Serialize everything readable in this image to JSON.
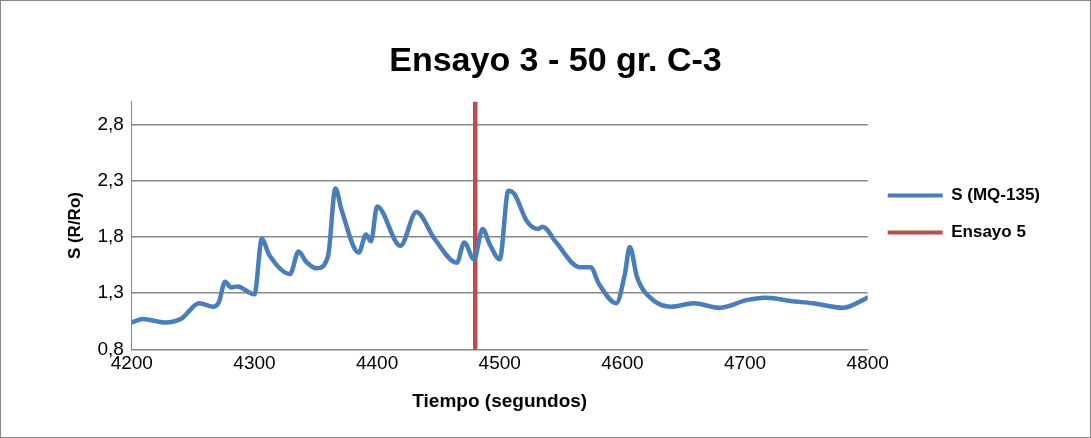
{
  "chart_data": {
    "type": "line",
    "title": "Ensayo 3 - 50 gr. C-3",
    "xlabel": "Tiempo (segundos)",
    "ylabel": "S (R/Ro)",
    "xlim": [
      4200,
      4800
    ],
    "xticks": [
      4200,
      4300,
      4400,
      4500,
      4600,
      4700,
      4800
    ],
    "ylim": [
      0.8,
      3.0
    ],
    "yticks": [
      {
        "value": 0.8,
        "label": "0,8"
      },
      {
        "value": 1.3,
        "label": "1,3"
      },
      {
        "value": 1.8,
        "label": "1,8"
      },
      {
        "value": 2.3,
        "label": "2,3"
      },
      {
        "value": 2.8,
        "label": "2,8"
      }
    ],
    "grid": "y",
    "legend": "right",
    "marker": "none",
    "line_style": "solid",
    "series": [
      {
        "name": "S (MQ-135)",
        "color": "#4a7ebb",
        "x": [
          4200,
          4209,
          4227,
          4240,
          4255,
          4266,
          4271,
          4276,
          4281,
          4286,
          4300,
          4306,
          4312,
          4329,
          4336,
          4342,
          4351,
          4360,
          4366,
          4371,
          4385,
          4391,
          4395,
          4400,
          4419,
          4432,
          4447,
          4465,
          4471,
          4479,
          4486,
          4492,
          4500,
          4507,
          4512,
          4522,
          4531,
          4535,
          4546,
          4565,
          4574,
          4581,
          4595,
          4602,
          4606,
          4612,
          4626,
          4640,
          4658,
          4679,
          4702,
          4718,
          4737,
          4755,
          4780,
          4800
        ],
        "values": [
          1.04,
          1.07,
          1.04,
          1.07,
          1.21,
          1.18,
          1.22,
          1.4,
          1.35,
          1.36,
          1.29,
          1.78,
          1.64,
          1.47,
          1.67,
          1.58,
          1.52,
          1.63,
          2.23,
          2.04,
          1.66,
          1.82,
          1.76,
          2.07,
          1.72,
          2.02,
          1.78,
          1.57,
          1.75,
          1.6,
          1.87,
          1.73,
          1.6,
          2.21,
          2.18,
          1.94,
          1.87,
          1.89,
          1.75,
          1.53,
          1.53,
          1.38,
          1.21,
          1.47,
          1.71,
          1.44,
          1.23,
          1.18,
          1.21,
          1.17,
          1.24,
          1.26,
          1.23,
          1.21,
          1.17,
          1.26
        ]
      },
      {
        "name": "Ensayo 5",
        "color": "#be4b48",
        "x": [
          4480,
          4480
        ],
        "values": [
          0.8,
          3.0
        ]
      }
    ]
  }
}
